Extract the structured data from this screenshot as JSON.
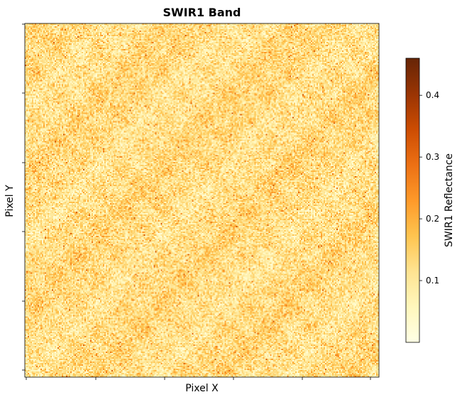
{
  "chart_data": {
    "type": "heatmap",
    "title": "SWIR1 Band",
    "xlabel": "Pixel X",
    "ylabel": "Pixel Y",
    "colormap": "YlOrBr",
    "colorbar": {
      "label": "SWIR1 Reflectance",
      "range": [
        0.0,
        0.46
      ],
      "ticks": [
        0.1,
        0.2,
        0.3,
        0.4
      ],
      "tick_labels": [
        "0.1",
        "0.2",
        "0.3",
        "0.4"
      ]
    },
    "x_tick_labels": [],
    "y_tick_labels": [],
    "grid": false,
    "value_distribution": {
      "typical_min": 0.02,
      "typical_max": 0.28,
      "mean": 0.12
    },
    "colors": [
      "#ffffe5",
      "#fff7bc",
      "#fee391",
      "#fec44f",
      "#fe9929",
      "#ec7014",
      "#cc4c02",
      "#993404",
      "#662506"
    ]
  }
}
